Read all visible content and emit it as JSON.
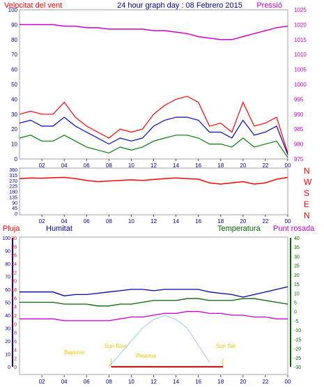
{
  "header": {
    "left": "Velocitat del vent",
    "center": "24 hour graph day : 08 Febrero 2015",
    "right": "Pressió"
  },
  "wind_directions": [
    "N",
    "W",
    "S",
    "E",
    "N"
  ],
  "bottom_labels": {
    "rain": "Pluja",
    "humidity": "Humitat",
    "temperature": "Temperatura",
    "dew_point": "Punt rosada"
  },
  "annotations": {
    "high_tide": "Bajamar",
    "sun_rise": "Sun Rise",
    "low_tide": "Pleamar",
    "sun_set": "Sun Set"
  },
  "colors": {
    "wind": "#ff0000",
    "average": "#0000cc",
    "gust_low": "#008000",
    "pressure": "#cc00cc",
    "humidity": "#0000aa",
    "temperature": "#006600",
    "dewpoint": "#cc00cc",
    "rain": "#ff0000",
    "sun": "#99ccff",
    "annotation": "#e6c800",
    "panel_border": "#a0a0a0"
  },
  "chart_data": [
    {
      "type": "line",
      "x_ticks": [
        "02",
        "04",
        "06",
        "08",
        "10",
        "12",
        "14",
        "16",
        "18",
        "20",
        "22",
        "00"
      ],
      "left_axis": {
        "ylim": [
          0,
          100
        ],
        "ticks": [
          0,
          10,
          20,
          30,
          40,
          50,
          60,
          70,
          80,
          90,
          100
        ]
      },
      "right_axis": {
        "ylim": [
          975,
          1025
        ],
        "ticks": [
          975,
          980,
          985,
          990,
          995,
          1000,
          1005,
          1010,
          1015,
          1020,
          1025
        ]
      },
      "x_hours": [
        0,
        1,
        2,
        3,
        4,
        5,
        6,
        7,
        8,
        9,
        10,
        11,
        12,
        13,
        14,
        15,
        16,
        17,
        18,
        19,
        20,
        21,
        22,
        23,
        24
      ],
      "series": [
        {
          "key": "wind_max",
          "values": [
            30,
            32,
            30,
            30,
            38,
            28,
            22,
            18,
            14,
            20,
            18,
            20,
            30,
            36,
            40,
            42,
            38,
            22,
            24,
            18,
            38,
            22,
            24,
            28,
            4
          ]
        },
        {
          "key": "wind_avg",
          "values": [
            24,
            26,
            22,
            22,
            28,
            22,
            18,
            14,
            10,
            14,
            12,
            14,
            22,
            26,
            28,
            28,
            26,
            18,
            18,
            14,
            26,
            16,
            18,
            22,
            3
          ]
        },
        {
          "key": "wind_min",
          "values": [
            14,
            16,
            12,
            12,
            16,
            12,
            8,
            6,
            4,
            8,
            6,
            8,
            12,
            14,
            16,
            16,
            14,
            10,
            10,
            8,
            14,
            8,
            10,
            12,
            1
          ]
        },
        {
          "key": "pressure",
          "values": [
            1020,
            1020,
            1020,
            1020,
            1019.5,
            1019.5,
            1019,
            1019,
            1018.5,
            1018.5,
            1018.5,
            1018.5,
            1018,
            1018,
            1017.5,
            1017,
            1016,
            1015.5,
            1015,
            1015,
            1016,
            1017,
            1018,
            1019,
            1019.5
          ]
        }
      ]
    },
    {
      "type": "line",
      "x_ticks": [
        "02",
        "04",
        "06",
        "08",
        "10",
        "12",
        "14",
        "16",
        "18",
        "20",
        "22",
        "00"
      ],
      "ylim": [
        0,
        360
      ],
      "ticks": [
        0,
        45,
        90,
        135,
        180,
        225,
        270,
        315,
        360
      ],
      "x_hours": [
        0,
        1,
        2,
        3,
        4,
        5,
        6,
        7,
        8,
        9,
        10,
        11,
        12,
        13,
        14,
        15,
        16,
        17,
        18,
        19,
        20,
        21,
        22,
        23,
        24
      ],
      "series": [
        {
          "key": "wind_direction",
          "values": [
            285,
            290,
            288,
            292,
            295,
            285,
            270,
            260,
            265,
            270,
            275,
            270,
            278,
            285,
            290,
            285,
            280,
            250,
            240,
            250,
            260,
            240,
            250,
            280,
            295
          ]
        }
      ]
    },
    {
      "type": "line",
      "x_ticks": [
        "02",
        "04",
        "06",
        "08",
        "10",
        "12",
        "14",
        "16",
        "18",
        "20",
        "22",
        "00"
      ],
      "rain_axis": {
        "ylim": [
          0,
          30
        ],
        "ticks": [
          0,
          2,
          4,
          6,
          8,
          10,
          12,
          14,
          16,
          18,
          20,
          22,
          24,
          26,
          28,
          30
        ]
      },
      "humidity_axis": {
        "ylim": [
          0,
          100
        ],
        "ticks": [
          0,
          10,
          20,
          30,
          40,
          50,
          60,
          70,
          80,
          90,
          100
        ]
      },
      "temperature_axis": {
        "ylim": [
          -30,
          40
        ],
        "ticks": [
          -30,
          -25,
          -20,
          -15,
          -10,
          -5,
          0,
          5,
          10,
          15,
          20,
          25,
          30,
          35,
          40
        ]
      },
      "x_hours": [
        0,
        1,
        2,
        3,
        4,
        5,
        6,
        7,
        8,
        9,
        10,
        11,
        12,
        13,
        14,
        15,
        16,
        17,
        18,
        19,
        20,
        21,
        22,
        23,
        24
      ],
      "series": [
        {
          "key": "humidity",
          "values": [
            58,
            58,
            58,
            58,
            55,
            56,
            56,
            57,
            58,
            59,
            60,
            60,
            59,
            60,
            60,
            60,
            60,
            58,
            57,
            56,
            54,
            56,
            58,
            60,
            62
          ]
        },
        {
          "key": "temperature",
          "values": [
            5,
            5,
            5,
            5,
            4,
            4,
            4,
            3,
            3,
            4,
            4,
            5,
            6,
            6,
            6,
            7,
            7,
            6,
            6,
            6,
            7,
            7,
            6,
            5,
            4
          ]
        },
        {
          "key": "dewpoint",
          "values": [
            -4,
            -4,
            -4,
            -4,
            -5,
            -5,
            -5,
            -5,
            -5,
            -4,
            -3,
            -3,
            -2,
            -1,
            -1,
            0,
            0,
            -1,
            -1,
            -2,
            -2,
            -3,
            -3,
            -4,
            -4
          ]
        },
        {
          "key": "sun_elevation",
          "values": [
            null,
            null,
            null,
            null,
            null,
            null,
            null,
            null,
            0,
            3,
            6,
            9,
            11,
            12,
            11,
            9,
            5,
            1,
            null,
            null,
            null,
            null,
            null,
            null,
            null
          ]
        }
      ],
      "markers_hour": {
        "high_tide": 4.5,
        "sun_rise": 8.2,
        "low_tide": 11.5,
        "sun_set": 18.2
      }
    }
  ]
}
